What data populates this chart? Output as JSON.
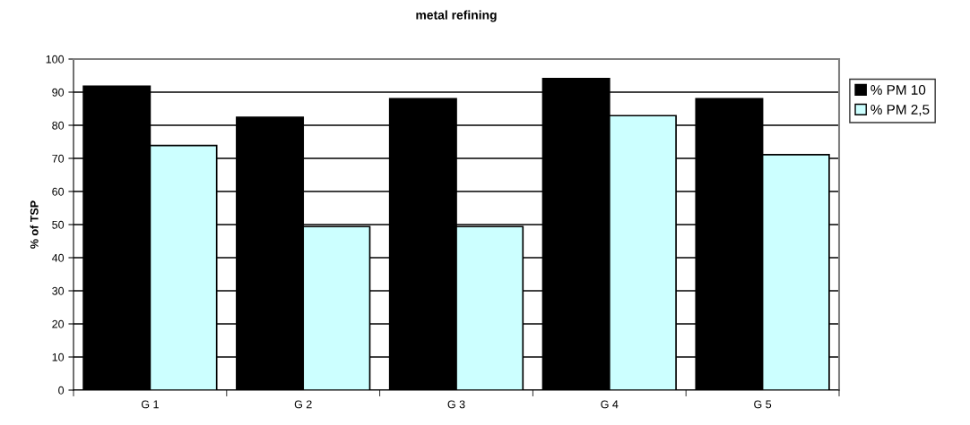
{
  "chart_data": {
    "type": "bar",
    "title": "metal refining",
    "ylabel": "% of TSP",
    "categories": [
      "G 1",
      "G 2",
      "G 3",
      "G 4",
      "G 5"
    ],
    "series": [
      {
        "name": "% PM 10",
        "color": "#000000",
        "values": [
          91.8,
          82.4,
          88.0,
          94.1,
          88.0
        ]
      },
      {
        "name": "% PM 2,5",
        "color": "#ccffff",
        "values": [
          73.9,
          49.4,
          49.4,
          82.9,
          71.1
        ]
      }
    ],
    "ylim": [
      0,
      100
    ],
    "yticks": [
      0,
      10,
      20,
      30,
      40,
      50,
      60,
      70,
      80,
      90,
      100
    ],
    "grid": "y",
    "legend": "right"
  }
}
